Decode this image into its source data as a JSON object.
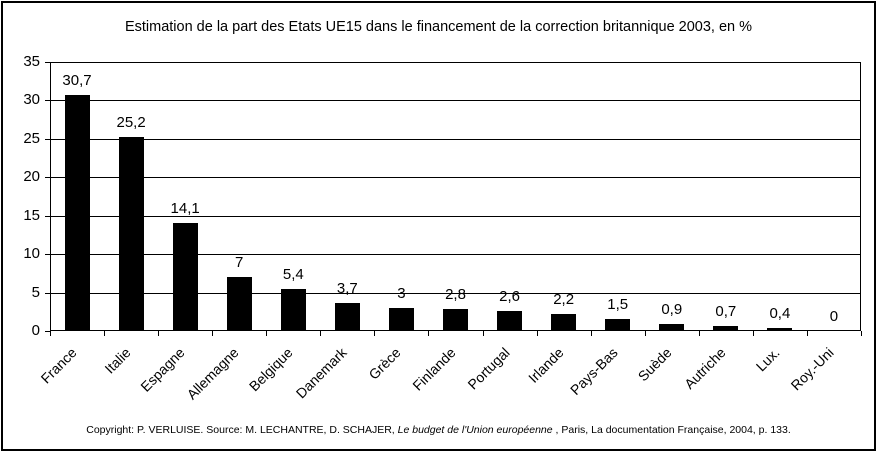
{
  "title": "Estimation de la part des Etats UE15 dans le financement de la correction britannique 2003, en %",
  "chart_data": {
    "type": "bar",
    "title": "Estimation de la part des Etats UE15 dans le financement de la correction britannique 2003, en %",
    "categories": [
      "France",
      "Italie",
      "Espagne",
      "Allemagne",
      "Belgique",
      "Danemark",
      "Grèce",
      "Finlande",
      "Portugal",
      "Irlande",
      "Pays-Bas",
      "Suède",
      "Autriche",
      "Lux.",
      "Roy.-Uni"
    ],
    "values": [
      30.7,
      25.2,
      14.1,
      7,
      5.4,
      3.7,
      3,
      2.8,
      2.6,
      2.2,
      1.5,
      0.9,
      0.7,
      0.4,
      0
    ],
    "value_labels": [
      "30,7",
      "25,2",
      "14,1",
      "7",
      "5,4",
      "3,7",
      "3",
      "2,8",
      "2,6",
      "2,2",
      "1,5",
      "0,9",
      "0,7",
      "0,4",
      "0"
    ],
    "xlabel": "",
    "ylabel": "",
    "ylim": [
      0,
      35
    ],
    "yticks": [
      0,
      5,
      10,
      15,
      20,
      25,
      30,
      35
    ],
    "grid": true,
    "legend": "none",
    "bar_color": "#000000",
    "background_color": "#ffffff"
  },
  "footer": {
    "prefix": "Copyright: P. VERLUISE. Source: M. LECHANTRE, D. SCHAJER, ",
    "italic": "Le budget de l'Union européenne",
    "suffix": " , Paris, La documentation Française, 2004, p. 133."
  }
}
